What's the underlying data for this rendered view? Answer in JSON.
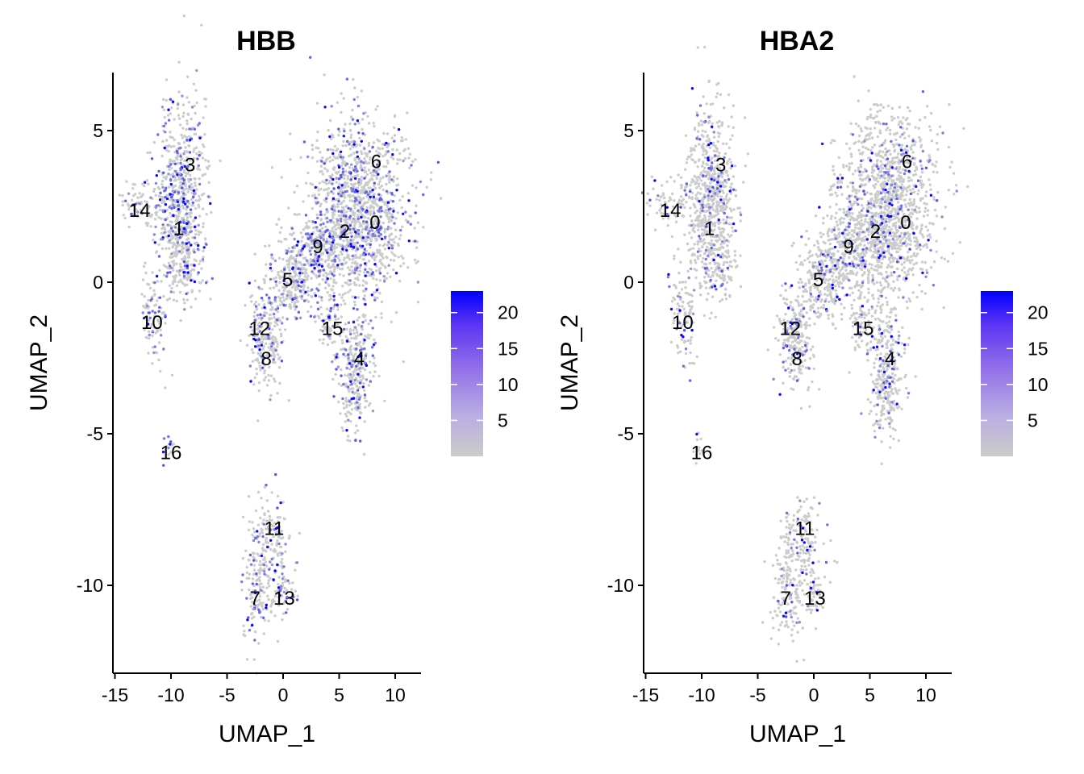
{
  "chart_data": [
    {
      "type": "scatter",
      "title": "HBB",
      "xlabel": "UMAP_1",
      "ylabel": "UMAP_2",
      "xlim": [
        -15.5,
        12.5
      ],
      "ylim": [
        -13,
        7
      ],
      "xticks": [
        "-15",
        "-10",
        "-5",
        "0",
        "5",
        "10"
      ],
      "yticks": [
        "-10",
        "-5",
        "0",
        "5"
      ],
      "legend_ticks": [
        "5",
        "10",
        "15",
        "20"
      ],
      "legend_range": [
        0,
        23
      ],
      "colors": {
        "low": "#cccccc",
        "high": "#0000ff"
      },
      "clusters": [
        {
          "label": "0",
          "x": 8.2,
          "y": 2.0
        },
        {
          "label": "1",
          "x": -9.3,
          "y": 1.8
        },
        {
          "label": "2",
          "x": 5.5,
          "y": 1.7
        },
        {
          "label": "3",
          "x": -8.3,
          "y": 3.9
        },
        {
          "label": "4",
          "x": 6.8,
          "y": -2.5
        },
        {
          "label": "5",
          "x": 0.4,
          "y": 0.1
        },
        {
          "label": "6",
          "x": 8.3,
          "y": 4.0
        },
        {
          "label": "7",
          "x": -2.5,
          "y": -10.4
        },
        {
          "label": "8",
          "x": -1.5,
          "y": -2.5
        },
        {
          "label": "9",
          "x": 3.1,
          "y": 1.2
        },
        {
          "label": "10",
          "x": -11.7,
          "y": -1.3
        },
        {
          "label": "11",
          "x": -0.8,
          "y": -8.1
        },
        {
          "label": "12",
          "x": -2.1,
          "y": -1.5
        },
        {
          "label": "13",
          "x": 0.1,
          "y": -10.4
        },
        {
          "label": "14",
          "x": -12.8,
          "y": 2.4
        },
        {
          "label": "15",
          "x": 4.4,
          "y": -1.5
        },
        {
          "label": "16",
          "x": -10.0,
          "y": -5.6
        }
      ]
    },
    {
      "type": "scatter",
      "title": "HBA2",
      "xlabel": "UMAP_1",
      "ylabel": "UMAP_2",
      "xlim": [
        -15.5,
        12.5
      ],
      "ylim": [
        -13,
        7
      ],
      "xticks": [
        "-15",
        "-10",
        "-5",
        "0",
        "5",
        "10"
      ],
      "yticks": [
        "-10",
        "-5",
        "0",
        "5"
      ],
      "legend_ticks": [
        "5",
        "10",
        "15",
        "20"
      ],
      "legend_range": [
        0,
        23
      ],
      "colors": {
        "low": "#cccccc",
        "high": "#0000ff"
      },
      "clusters": [
        {
          "label": "0",
          "x": 8.2,
          "y": 2.0
        },
        {
          "label": "1",
          "x": -9.3,
          "y": 1.8
        },
        {
          "label": "2",
          "x": 5.5,
          "y": 1.7
        },
        {
          "label": "3",
          "x": -8.3,
          "y": 3.9
        },
        {
          "label": "4",
          "x": 6.8,
          "y": -2.5
        },
        {
          "label": "5",
          "x": 0.4,
          "y": 0.1
        },
        {
          "label": "6",
          "x": 8.3,
          "y": 4.0
        },
        {
          "label": "7",
          "x": -2.5,
          "y": -10.4
        },
        {
          "label": "8",
          "x": -1.5,
          "y": -2.5
        },
        {
          "label": "9",
          "x": 3.1,
          "y": 1.2
        },
        {
          "label": "10",
          "x": -11.7,
          "y": -1.3
        },
        {
          "label": "11",
          "x": -0.8,
          "y": -8.1
        },
        {
          "label": "12",
          "x": -2.1,
          "y": -1.5
        },
        {
          "label": "13",
          "x": 0.1,
          "y": -10.4
        },
        {
          "label": "14",
          "x": -12.8,
          "y": 2.4
        },
        {
          "label": "15",
          "x": 4.4,
          "y": -1.5
        },
        {
          "label": "16",
          "x": -10.0,
          "y": -5.6
        }
      ]
    }
  ]
}
